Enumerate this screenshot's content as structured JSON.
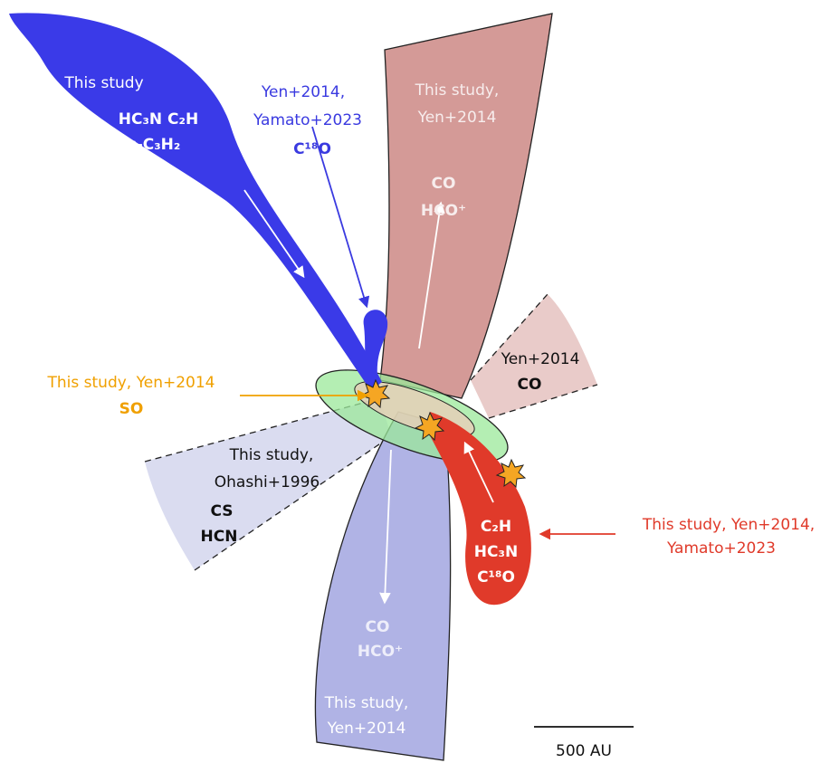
{
  "diagram": {
    "blue_streamer": {
      "citation": [
        "This study"
      ],
      "molecules": [
        "HC₃N  C₂H",
        "c-C₃H₂"
      ]
    },
    "blue_pointer": {
      "citation": [
        "Yen+2014,",
        "Yamato+2023"
      ],
      "molecules": [
        "C¹⁸O"
      ]
    },
    "red_outflow": {
      "citation": [
        "This study,",
        "Yen+2014"
      ],
      "molecules": [
        "CO",
        "HCO⁺"
      ]
    },
    "right_cone": {
      "citation": [
        "Yen+2014"
      ],
      "molecules": [
        "CO"
      ]
    },
    "disk_pointer": {
      "citation": [
        "This study, Yen+2014"
      ],
      "molecules": [
        "SO"
      ]
    },
    "left_cone": {
      "citation": [
        "This study,",
        "Ohashi+1996"
      ],
      "molecules": [
        "CS",
        "HCN"
      ]
    },
    "red_streamer": {
      "molecules": [
        "C₂H",
        "HC₃N",
        "C¹⁸O"
      ]
    },
    "red_pointer": {
      "citation": [
        "This study, Yen+2014,",
        "Yamato+2023"
      ]
    },
    "blue_outflow": {
      "molecules": [
        "CO",
        "HCO⁺"
      ],
      "citation": [
        "This study,",
        "Yen+2014"
      ]
    },
    "scale_bar": {
      "label": "500 AU"
    }
  }
}
